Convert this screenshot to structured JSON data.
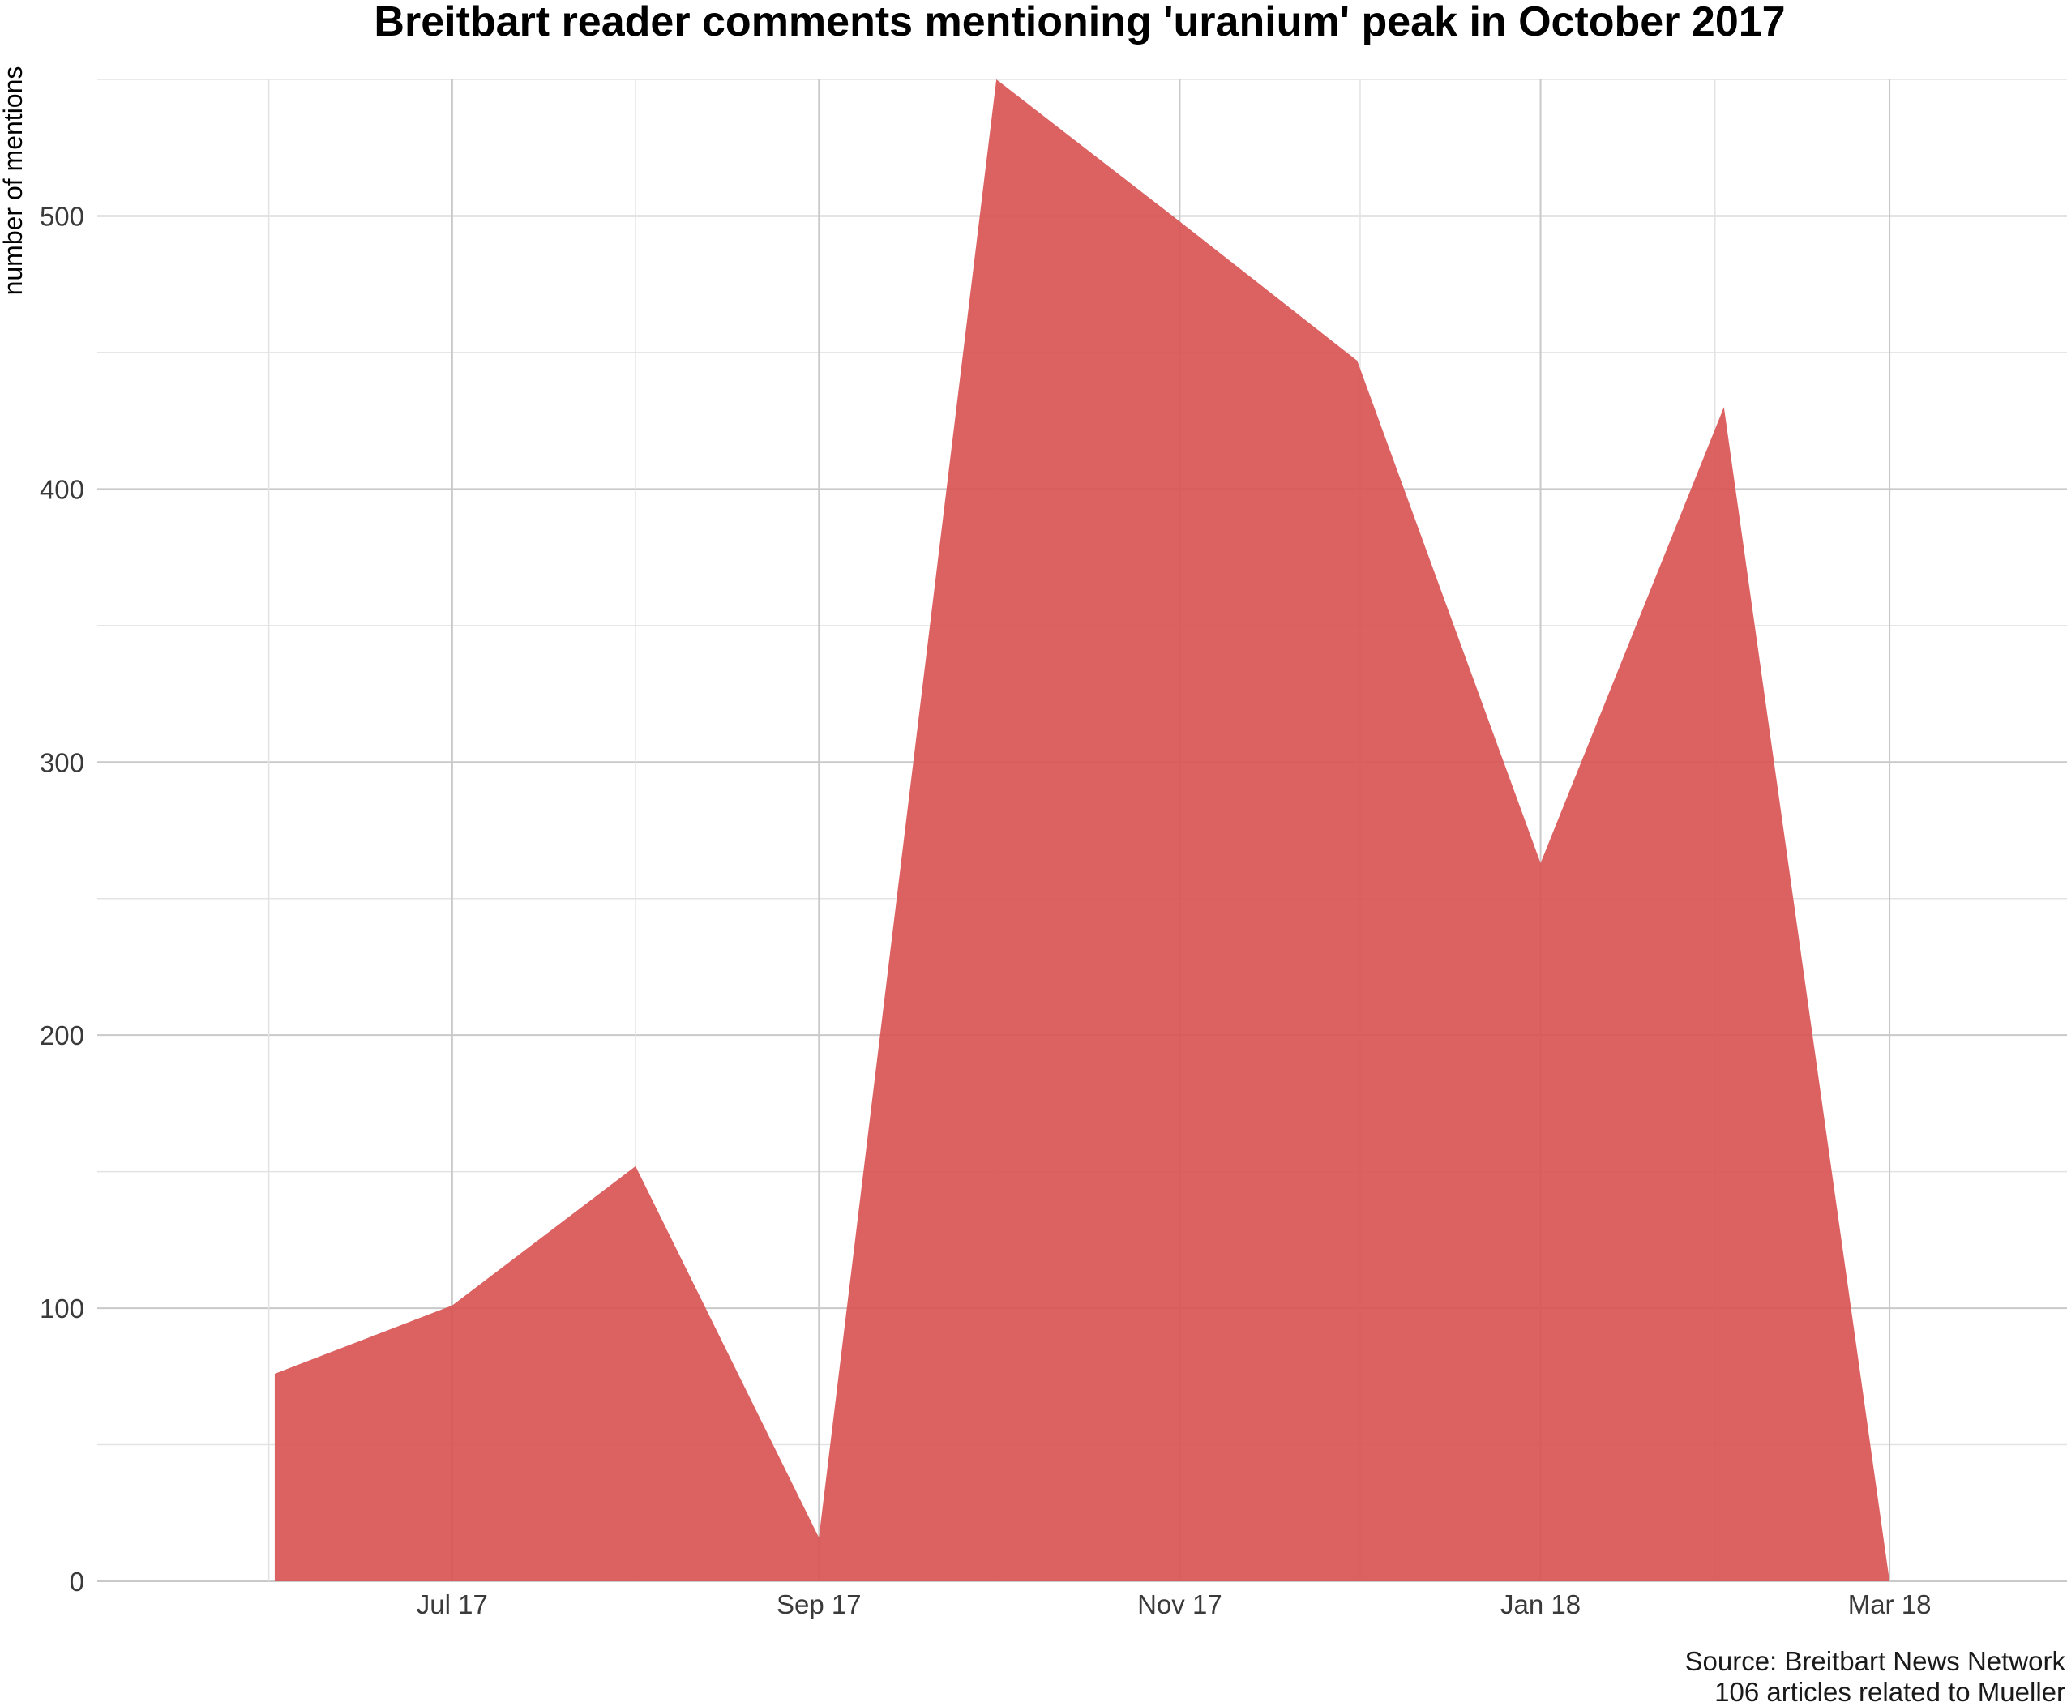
{
  "chart_data": {
    "type": "area",
    "title": "Breitbart reader comments mentioning 'uranium' peak in October 2017",
    "xlabel": "",
    "ylabel": "number of mentions",
    "x": [
      "2017-06-01",
      "2017-07-01",
      "2017-08-01",
      "2017-09-01",
      "2017-10-01",
      "2017-11-01",
      "2017-12-01",
      "2018-01-01",
      "2018-02-01",
      "2018-03-01"
    ],
    "values": [
      76,
      101,
      152,
      16,
      550,
      498,
      447,
      263,
      430,
      0
    ],
    "xticks": [
      {
        "date": "2017-07-01",
        "label": "Jul 17"
      },
      {
        "date": "2017-09-01",
        "label": "Sep 17"
      },
      {
        "date": "2017-11-01",
        "label": "Nov 17"
      },
      {
        "date": "2018-01-01",
        "label": "Jan 18"
      },
      {
        "date": "2018-03-01",
        "label": "Mar 18"
      }
    ],
    "yticks": [
      0,
      100,
      200,
      300,
      400,
      500
    ],
    "ylim": [
      0,
      550
    ],
    "xlim": [
      "2017-05-02",
      "2018-03-31"
    ],
    "grid": true,
    "fill_color": "#d95454",
    "caption_lines": [
      "Source: Breitbart News Network",
      "106 articles related to Mueller"
    ]
  }
}
